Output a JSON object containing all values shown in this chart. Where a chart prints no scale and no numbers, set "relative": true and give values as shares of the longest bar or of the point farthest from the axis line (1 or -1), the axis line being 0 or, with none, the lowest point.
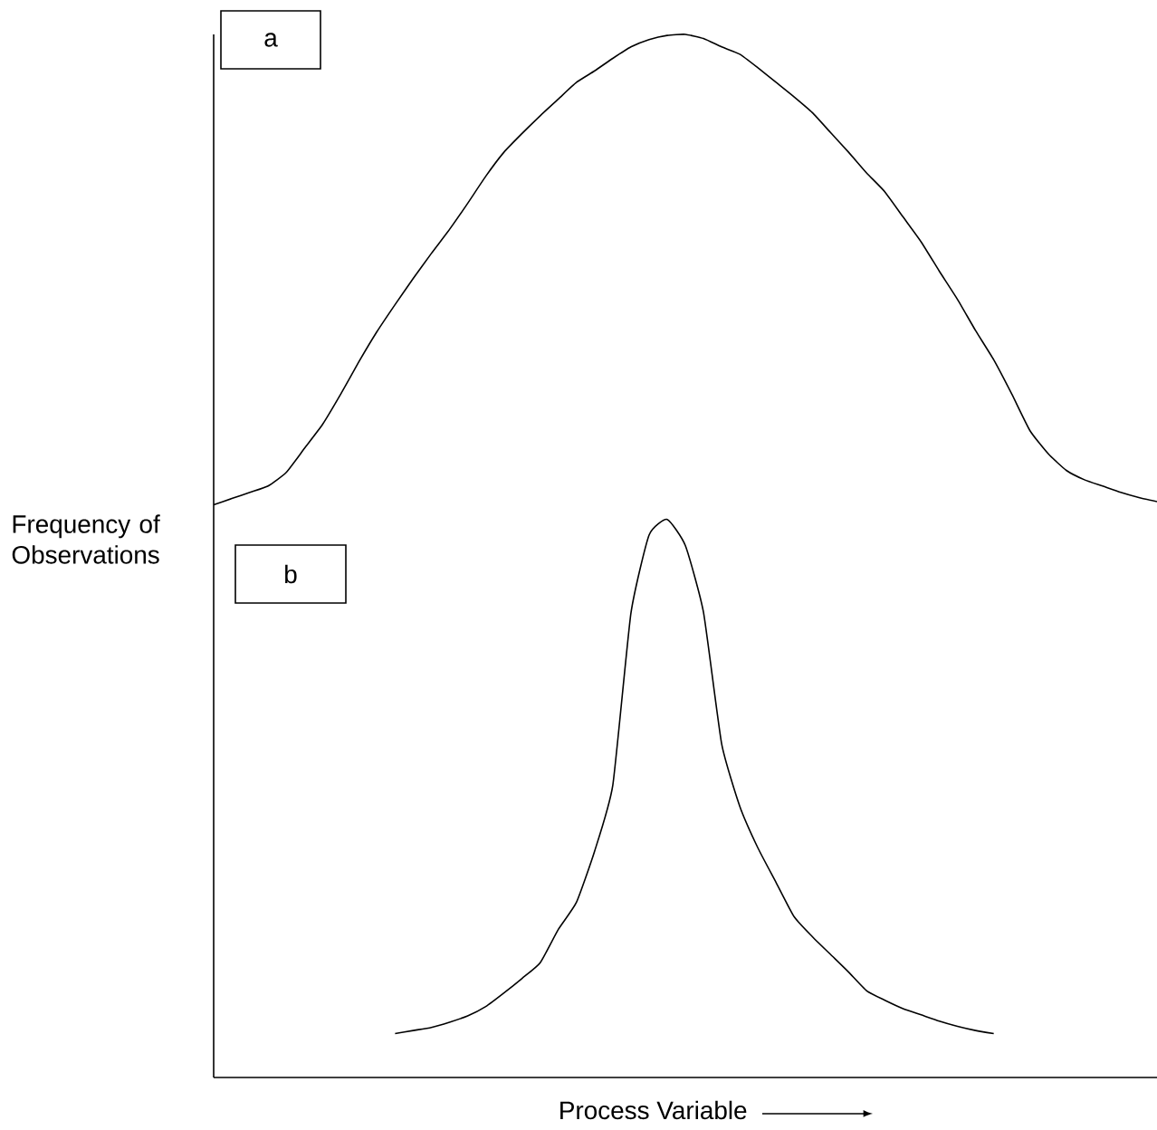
{
  "chart_data": {
    "type": "line",
    "relative": true,
    "xlabel": "Process Variable",
    "ylabel": "Frequency of Observations",
    "categories": [
      null,
      null,
      null,
      null,
      null,
      null,
      null,
      null,
      null,
      null,
      null,
      null,
      null,
      null,
      null,
      null,
      null,
      null,
      null,
      null,
      null,
      null,
      null,
      null,
      null,
      null,
      null,
      null,
      null,
      null,
      null,
      null,
      null,
      null,
      null,
      null,
      null,
      null,
      null,
      null,
      null,
      null,
      null,
      null,
      null,
      null,
      null,
      null,
      null,
      null,
      null,
      null,
      null
    ],
    "series": [
      {
        "color": "#000000",
        "values": [
          0.549,
          0.555,
          0.561,
          0.567,
          0.58,
          0.603,
          0.626,
          0.655,
          0.686,
          0.715,
          0.741,
          0.766,
          0.79,
          0.813,
          0.838,
          0.864,
          0.887,
          0.905,
          0.922,
          0.938,
          0.954,
          0.965,
          0.977,
          0.988,
          0.995,
          0.999,
          1,
          0.996,
          0.988,
          0.981,
          0.968,
          0.954,
          0.94,
          0.925,
          0.906,
          0.887,
          0.867,
          0.849,
          0.825,
          0.801,
          0.773,
          0.746,
          0.716,
          0.688,
          0.655,
          0.62,
          0.598,
          0.582,
          0.573,
          0.567,
          0.561,
          0.556,
          0.552
        ]
      },
      {
        "color": "#000000",
        "values": [
          null,
          null,
          null,
          null,
          null,
          null,
          null,
          null,
          null,
          null,
          0.042,
          0.045,
          0.048,
          0.053,
          0.059,
          0.068,
          0.081,
          0.095,
          0.11,
          0.142,
          0.168,
          0.217,
          0.28,
          0.445,
          0.52,
          0.535,
          0.51,
          0.446,
          0.32,
          0.26,
          0.22,
          0.187,
          0.154,
          0.135,
          0.118,
          0.101,
          0.083,
          0.074,
          0.066,
          0.06,
          0.054,
          0.049,
          0.045,
          0.042,
          null,
          null,
          null,
          null,
          null,
          null,
          null,
          null,
          null
        ]
      }
    ],
    "annotations": [
      "a",
      "b"
    ],
    "marker": "none",
    "line_style": "solid"
  }
}
